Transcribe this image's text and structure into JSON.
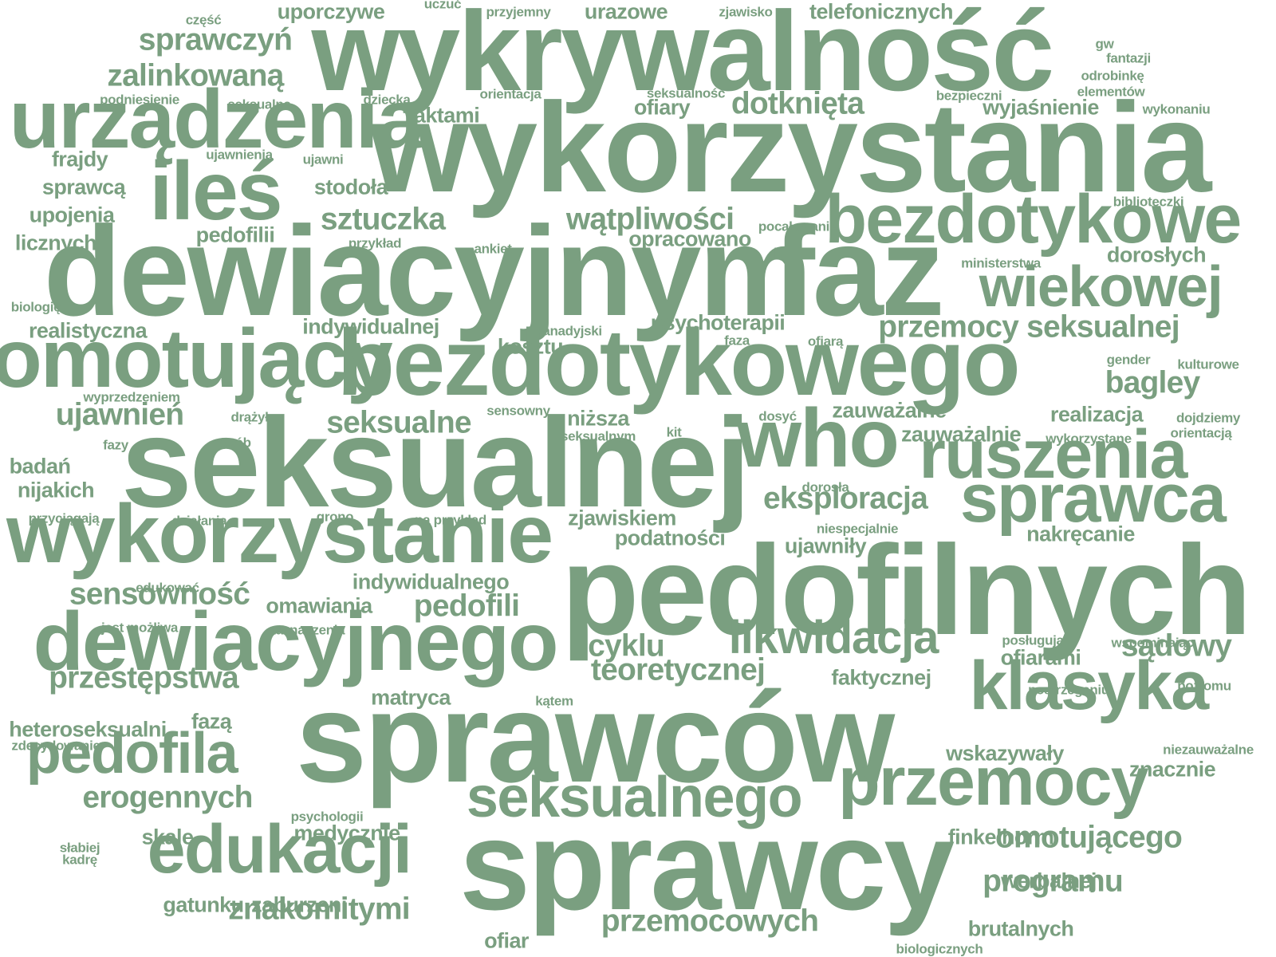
{
  "cloud": {
    "color": "#7a9f80",
    "words": [
      {
        "t": "wykrywalność",
        "s": 9
      },
      {
        "t": "wykorzystania",
        "s": 10
      },
      {
        "t": "dewiacyjnym",
        "s": 10
      },
      {
        "t": "faz",
        "s": 10
      },
      {
        "t": "bezdotykowego",
        "s": 8
      },
      {
        "t": "seksualnej",
        "s": 10
      },
      {
        "t": "pedofilnych",
        "s": 10
      },
      {
        "t": "sprawców",
        "s": 10
      },
      {
        "t": "sprawcy",
        "s": 10
      },
      {
        "t": "urządzenia",
        "s": 7
      },
      {
        "t": "ileś",
        "s": 7
      },
      {
        "t": "omotujący",
        "s": 7
      },
      {
        "t": "wykorzystanie",
        "s": 7
      },
      {
        "t": "dewiacyjnego",
        "s": 7
      },
      {
        "t": "bezdotykowe",
        "s": 6
      },
      {
        "t": "who",
        "s": 7
      },
      {
        "t": "ruszenia",
        "s": 6
      },
      {
        "t": "sprawca",
        "s": 6
      },
      {
        "t": "klasyka",
        "s": 6
      },
      {
        "t": "przemocy",
        "s": 6
      },
      {
        "t": "edukacji",
        "s": 6
      },
      {
        "t": "seksualnego",
        "s": 5
      },
      {
        "t": "pedofila",
        "s": 5
      },
      {
        "t": "wiekowej",
        "s": 5
      },
      {
        "t": "likwidacja",
        "s": 4
      },
      {
        "t": "zalinkowaną",
        "s": 3
      },
      {
        "t": "sprawczyń",
        "s": 3
      },
      {
        "t": "dotknięta",
        "s": 3
      },
      {
        "t": "sztuczka",
        "s": 3
      },
      {
        "t": "wątpliwości",
        "s": 3
      },
      {
        "t": "przemocy seksualnej",
        "s": 3
      },
      {
        "t": "seksualne",
        "s": 3
      },
      {
        "t": "eksploracja",
        "s": 3
      },
      {
        "t": "ujawnień",
        "s": 3
      },
      {
        "t": "bagley",
        "s": 3
      },
      {
        "t": "przestępstwa",
        "s": 3
      },
      {
        "t": "erogennych",
        "s": 3
      },
      {
        "t": "sensowność",
        "s": 3
      },
      {
        "t": "pedofili",
        "s": 3
      },
      {
        "t": "teoretycznej",
        "s": 3
      },
      {
        "t": "programu",
        "s": 3
      },
      {
        "t": "znakomitymi",
        "s": 3
      },
      {
        "t": "przemocowych",
        "s": 3
      },
      {
        "t": "omotującego",
        "s": 3
      },
      {
        "t": "sądowy",
        "s": 3
      },
      {
        "t": "ofiarami",
        "s": 2
      },
      {
        "t": "cyklu",
        "s": 3
      },
      {
        "t": "podatności",
        "s": 2
      },
      {
        "t": "dorosłych",
        "s": 2
      },
      {
        "t": "wskazywały",
        "s": 2
      },
      {
        "t": "nakręcanie",
        "s": 2
      },
      {
        "t": "faktycznej",
        "s": 2
      },
      {
        "t": "uporczywe",
        "s": 2
      },
      {
        "t": "urazowe",
        "s": 2
      },
      {
        "t": "telefonicznych",
        "s": 2
      },
      {
        "t": "ofiary",
        "s": 2
      },
      {
        "t": "aktami",
        "s": 2
      },
      {
        "t": "wyjaśnienie",
        "s": 2
      },
      {
        "t": "stodoła",
        "s": 2
      },
      {
        "t": "sprawcą",
        "s": 2
      },
      {
        "t": "pedofilii",
        "s": 2
      },
      {
        "t": "opracowano",
        "s": 2
      },
      {
        "t": "frajdy",
        "s": 2
      },
      {
        "t": "upojenia",
        "s": 2
      },
      {
        "t": "licznych",
        "s": 2
      },
      {
        "t": "realistyczna",
        "s": 2
      },
      {
        "t": "indywidualnej",
        "s": 2
      },
      {
        "t": "psychoterapii",
        "s": 2
      },
      {
        "t": "kosztu",
        "s": 2
      },
      {
        "t": "realizacja",
        "s": 2
      },
      {
        "t": "zauważalne",
        "s": 2
      },
      {
        "t": "zauważalnie",
        "s": 2
      },
      {
        "t": "niższa",
        "s": 2
      },
      {
        "t": "badań",
        "s": 2
      },
      {
        "t": "nijakich",
        "s": 2
      },
      {
        "t": "zjawiskiem",
        "s": 2
      },
      {
        "t": "ujawniły",
        "s": 2
      },
      {
        "t": "indywidualnego",
        "s": 2
      },
      {
        "t": "omawiania",
        "s": 2
      },
      {
        "t": "zaznaczenia",
        "s": 1
      },
      {
        "t": "matryca",
        "s": 2
      },
      {
        "t": "heteroseksualni",
        "s": 2
      },
      {
        "t": "fazą",
        "s": 2
      },
      {
        "t": "skale",
        "s": 2
      },
      {
        "t": "medycznie",
        "s": 2
      },
      {
        "t": "gatunku",
        "s": 2
      },
      {
        "t": "zaburzeni",
        "s": 2
      },
      {
        "t": "ofiar",
        "s": 2
      },
      {
        "t": "finkelhorm",
        "s": 2
      },
      {
        "t": "werbalnej",
        "s": 2
      },
      {
        "t": "brutalnych",
        "s": 2
      },
      {
        "t": "znacznie",
        "s": 2
      },
      {
        "t": "postrzeganiu",
        "s": 1
      },
      {
        "t": "poziomu",
        "s": 1
      },
      {
        "t": "część",
        "s": 1
      },
      {
        "t": "uczuć",
        "s": 1
      },
      {
        "t": "przyjemny",
        "s": 1
      },
      {
        "t": "zjawisko",
        "s": 1
      },
      {
        "t": "gw",
        "s": 1
      },
      {
        "t": "fantazji",
        "s": 1
      },
      {
        "t": "odrobinkę",
        "s": 1
      },
      {
        "t": "elementów",
        "s": 1
      },
      {
        "t": "bezpieczni",
        "s": 1
      },
      {
        "t": "wykonaniu",
        "s": 1
      },
      {
        "t": "seksualność",
        "s": 1
      },
      {
        "t": "dziecka",
        "s": 1
      },
      {
        "t": "orientacja",
        "s": 1
      },
      {
        "t": "podniesienie",
        "s": 1
      },
      {
        "t": "seksualna",
        "s": 1
      },
      {
        "t": "ujawnienia",
        "s": 1
      },
      {
        "t": "ujawni",
        "s": 1
      },
      {
        "t": "biblioteczki",
        "s": 1
      },
      {
        "t": "pocałowanie",
        "s": 1
      },
      {
        "t": "przykład",
        "s": 1
      },
      {
        "t": "ankiet",
        "s": 1
      },
      {
        "t": "ministerstwa",
        "s": 1
      },
      {
        "t": "biologię",
        "s": 1
      },
      {
        "t": "kanadyjski",
        "s": 1
      },
      {
        "t": "faza",
        "s": 1
      },
      {
        "t": "ofiarą",
        "s": 1
      },
      {
        "t": "gender",
        "s": 1
      },
      {
        "t": "kulturowe",
        "s": 1
      },
      {
        "t": "wyprzedzeniem",
        "s": 1
      },
      {
        "t": "drążył",
        "s": 1
      },
      {
        "t": "sensowny",
        "s": 1
      },
      {
        "t": "dosyć",
        "s": 1
      },
      {
        "t": "dojdziemy",
        "s": 1
      },
      {
        "t": "wykorzystane",
        "s": 1
      },
      {
        "t": "orientacją",
        "s": 1
      },
      {
        "t": "fazy",
        "s": 1
      },
      {
        "t": "osób",
        "s": 1
      },
      {
        "t": "seksualnym",
        "s": 1
      },
      {
        "t": "kit",
        "s": 1
      },
      {
        "t": "dorosła",
        "s": 1
      },
      {
        "t": "przyciągają",
        "s": 1
      },
      {
        "t": "działania",
        "s": 1
      },
      {
        "t": "grono",
        "s": 1
      },
      {
        "t": "na przykład",
        "s": 1
      },
      {
        "t": "niespecjalnie",
        "s": 1
      },
      {
        "t": "edukować",
        "s": 1
      },
      {
        "t": "jest możliwa",
        "s": 1
      },
      {
        "t": "posługują",
        "s": 1
      },
      {
        "t": "wspominając",
        "s": 1
      },
      {
        "t": "kątem",
        "s": 1
      },
      {
        "t": "zdecydowanie",
        "s": 1
      },
      {
        "t": "niezauważalne",
        "s": 1
      },
      {
        "t": "psychologii",
        "s": 1
      },
      {
        "t": "słabiej",
        "s": 1
      },
      {
        "t": "kadrę",
        "s": 1
      },
      {
        "t": "biologicznych",
        "s": 1
      }
    ]
  }
}
